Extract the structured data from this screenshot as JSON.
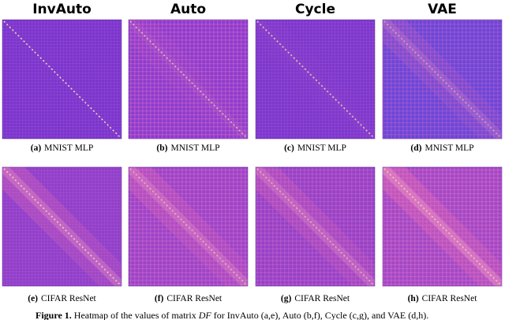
{
  "figure": {
    "columns": [
      "InvAuto",
      "Auto",
      "Cycle",
      "VAE"
    ],
    "rows": [
      {
        "panels": [
          {
            "label": "(a)",
            "text": "MNIST MLP"
          },
          {
            "label": "(b)",
            "text": "MNIST MLP"
          },
          {
            "label": "(c)",
            "text": "MNIST MLP"
          },
          {
            "label": "(d)",
            "text": "MNIST MLP"
          }
        ]
      },
      {
        "panels": [
          {
            "label": "(e)",
            "text": "CIFAR ResNet"
          },
          {
            "label": "(f)",
            "text": "CIFAR ResNet"
          },
          {
            "label": "(g)",
            "text": "CIFAR ResNet"
          },
          {
            "label": "(h)",
            "text": "CIFAR ResNet"
          }
        ]
      }
    ],
    "caption": {
      "label": "Figure 1.",
      "before": " Heatmap of the values of matrix ",
      "math": "DF",
      "after": " for InvAuto (a,e), Auto (b,f), Cycle (c,g), and VAE (d,h)."
    }
  }
}
